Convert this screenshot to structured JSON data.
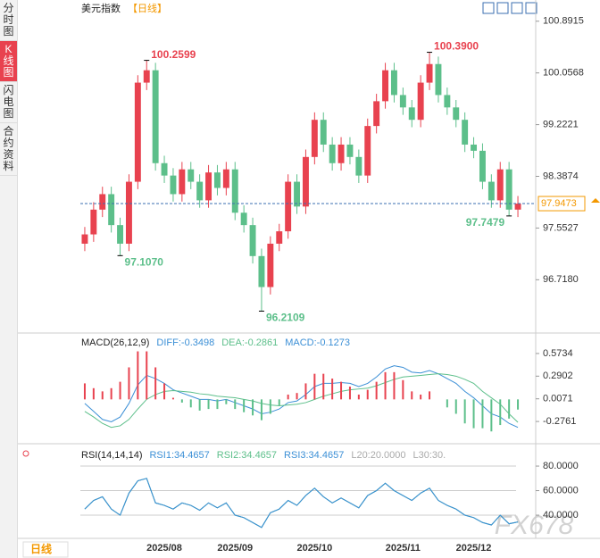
{
  "sidebar": {
    "tabs": [
      "分时图",
      "K线图",
      "闪电图",
      "合约资料"
    ],
    "active": 1
  },
  "footer": {
    "tab": "日线"
  },
  "watermark": "FX678",
  "chart_data": [
    {
      "type": "candlestick",
      "title": "美元指数",
      "period": "【日线】",
      "categories": [
        null,
        null,
        null,
        null,
        null,
        null,
        null,
        null,
        null,
        "2025/08",
        null,
        null,
        null,
        null,
        null,
        null,
        null,
        "2025/09",
        null,
        null,
        null,
        null,
        null,
        null,
        null,
        null,
        "2025/10",
        null,
        null,
        null,
        null,
        null,
        null,
        null,
        null,
        null,
        "2025/11",
        null,
        null,
        null,
        null,
        null,
        null,
        null,
        "2025/12",
        null,
        null,
        null,
        null,
        null
      ],
      "candles": {
        "open": [
          97.3,
          97.45,
          97.85,
          98.1,
          97.6,
          97.3,
          98.3,
          99.9,
          100.1,
          98.6,
          98.4,
          98.1,
          98.5,
          98.3,
          98.0,
          98.45,
          98.2,
          98.5,
          97.8,
          97.6,
          97.1,
          96.6,
          97.3,
          97.5,
          98.3,
          97.9,
          98.7,
          99.3,
          98.9,
          98.6,
          98.9,
          98.7,
          98.4,
          99.2,
          99.6,
          100.1,
          99.7,
          99.5,
          99.3,
          99.9,
          100.2,
          99.7,
          99.5,
          99.3,
          98.9,
          98.8,
          98.3,
          98.0,
          98.5,
          97.85
        ],
        "high": [
          97.57,
          97.97,
          98.22,
          98.22,
          97.72,
          98.42,
          100.02,
          100.2599,
          100.22,
          98.72,
          98.52,
          98.62,
          98.62,
          98.42,
          98.57,
          98.57,
          98.62,
          98.62,
          97.92,
          97.72,
          97.22,
          97.42,
          97.62,
          98.42,
          98.42,
          98.82,
          99.42,
          99.42,
          99.02,
          99.02,
          99.02,
          98.82,
          99.32,
          99.72,
          100.22,
          100.22,
          99.82,
          99.62,
          100.02,
          100.39,
          100.32,
          99.82,
          99.62,
          99.42,
          99.02,
          98.92,
          98.42,
          98.62,
          98.62,
          98.07
        ],
        "low": [
          97.18,
          97.33,
          97.73,
          97.48,
          97.107,
          97.18,
          98.18,
          99.78,
          98.48,
          98.28,
          97.98,
          97.98,
          98.18,
          97.88,
          97.88,
          98.08,
          98.08,
          97.68,
          97.48,
          96.98,
          96.2109,
          96.48,
          97.18,
          97.38,
          97.78,
          97.78,
          98.58,
          98.78,
          98.48,
          98.48,
          98.58,
          98.28,
          98.28,
          99.08,
          99.48,
          99.58,
          99.38,
          99.18,
          99.18,
          99.78,
          99.58,
          99.38,
          99.18,
          98.78,
          98.68,
          98.18,
          97.88,
          97.88,
          97.7479,
          97.73
        ],
        "close": [
          97.45,
          97.85,
          98.1,
          97.6,
          97.3,
          98.3,
          99.9,
          100.1,
          98.6,
          98.4,
          98.1,
          98.5,
          98.3,
          98.0,
          98.45,
          98.2,
          98.5,
          97.8,
          97.6,
          97.1,
          96.6,
          97.3,
          97.5,
          98.3,
          97.9,
          98.7,
          99.3,
          98.9,
          98.6,
          98.9,
          98.7,
          98.4,
          99.2,
          99.6,
          100.1,
          99.7,
          99.5,
          99.3,
          99.9,
          100.2,
          99.7,
          99.5,
          99.3,
          98.9,
          98.8,
          98.3,
          98.0,
          98.5,
          97.85,
          97.9473
        ]
      },
      "high_labels": [
        null,
        null,
        null,
        null,
        null,
        null,
        null,
        "100.2599",
        null,
        null,
        null,
        null,
        null,
        null,
        null,
        null,
        null,
        null,
        null,
        null,
        null,
        null,
        null,
        null,
        null,
        null,
        null,
        null,
        null,
        null,
        null,
        null,
        null,
        null,
        null,
        null,
        null,
        null,
        null,
        "100.3900",
        null,
        null,
        null,
        null,
        null,
        null,
        null,
        null,
        null,
        null
      ],
      "low_labels": [
        null,
        null,
        null,
        null,
        "97.1070",
        null,
        null,
        null,
        null,
        null,
        null,
        null,
        null,
        null,
        null,
        null,
        null,
        null,
        null,
        null,
        "96.2109",
        null,
        null,
        null,
        null,
        null,
        null,
        null,
        null,
        null,
        null,
        null,
        null,
        null,
        null,
        null,
        null,
        null,
        null,
        null,
        null,
        null,
        null,
        null,
        null,
        null,
        null,
        null,
        "97.7479",
        null
      ],
      "last_price": 97.9473,
      "up_color": "#e8424f",
      "down_color": "#5cbf8a",
      "last_color": "#f39800",
      "ylim": [
        95.93,
        101.09
      ],
      "yticks": [
        100.8915,
        100.0568,
        99.2221,
        98.3874,
        97.5527,
        {
          "value": 96.718,
          "label": "96.7180"
        }
      ]
    },
    {
      "type": "macd",
      "title": "MACD(26,12,9)",
      "series": [
        {
          "name": "DIFF:-0.3498",
          "color": "#3b8fd6",
          "values": [
            -0.05,
            -0.15,
            -0.25,
            -0.28,
            -0.22,
            -0.05,
            0.18,
            0.3,
            0.26,
            0.2,
            0.12,
            0.08,
            0.04,
            0.0,
            0.0,
            -0.02,
            0.0,
            -0.04,
            -0.08,
            -0.12,
            -0.18,
            -0.16,
            -0.12,
            -0.04,
            -0.02,
            0.06,
            0.16,
            0.2,
            0.2,
            0.21,
            0.2,
            0.16,
            0.2,
            0.28,
            0.38,
            0.42,
            0.4,
            0.34,
            0.33,
            0.36,
            0.32,
            0.26,
            0.2,
            0.1,
            0.02,
            -0.08,
            -0.18,
            -0.22,
            -0.3,
            -0.3498
          ]
        },
        {
          "name": "DEA:-0.2861",
          "color": "#5cbf8a",
          "values": [
            -0.15,
            -0.22,
            -0.3,
            -0.35,
            -0.33,
            -0.25,
            -0.12,
            0.0,
            0.06,
            0.1,
            0.11,
            0.1,
            0.09,
            0.07,
            0.06,
            0.04,
            0.03,
            0.02,
            0.0,
            -0.02,
            -0.05,
            -0.07,
            -0.08,
            -0.07,
            -0.06,
            -0.04,
            0.0,
            0.04,
            0.07,
            0.1,
            0.12,
            0.13,
            0.14,
            0.17,
            0.21,
            0.25,
            0.28,
            0.29,
            0.3,
            0.31,
            0.32,
            0.31,
            0.29,
            0.25,
            0.2,
            0.1,
            0.02,
            -0.06,
            -0.18,
            -0.2861
          ]
        },
        {
          "name": "MACD:-0.1273",
          "color": "#3b8fd6",
          "histogram": true,
          "values": [
            0.2,
            0.14,
            0.1,
            0.14,
            0.22,
            0.4,
            0.6,
            0.6,
            0.4,
            0.2,
            0.02,
            -0.04,
            -0.1,
            -0.14,
            -0.12,
            -0.12,
            -0.06,
            -0.12,
            -0.16,
            -0.2,
            -0.26,
            -0.18,
            -0.08,
            0.06,
            0.08,
            0.2,
            0.32,
            0.32,
            0.26,
            0.22,
            0.16,
            0.06,
            0.12,
            0.22,
            0.34,
            0.34,
            0.24,
            0.1,
            0.06,
            0.1,
            0.0,
            -0.1,
            -0.18,
            -0.3,
            -0.36,
            -0.36,
            -0.4,
            -0.32,
            -0.24,
            -0.1273
          ]
        }
      ],
      "up_color": "#e8424f",
      "down_color": "#5cbf8a",
      "ylim": [
        -0.498,
        0.751
      ],
      "yticks": [
        0.5734,
        0.2902,
        0.0071,
        -0.2761
      ]
    },
    {
      "type": "line",
      "title": "RSI(14,14,14)",
      "series": [
        {
          "name": "RSI1:34.4657",
          "color": "#3b8fd6",
          "values": [
            45,
            52,
            55,
            45,
            40,
            58,
            68,
            70,
            50,
            48,
            45,
            50,
            48,
            44,
            50,
            46,
            50,
            40,
            38,
            34,
            30,
            42,
            45,
            52,
            48,
            56,
            62,
            55,
            50,
            54,
            50,
            46,
            56,
            60,
            66,
            60,
            56,
            52,
            58,
            62,
            52,
            48,
            45,
            40,
            38,
            34,
            32,
            40,
            33,
            34.4657
          ]
        },
        {
          "name": "RSI2:34.4657",
          "color": "#5cbf8a",
          "values": [
            45,
            52,
            55,
            45,
            40,
            58,
            68,
            70,
            50,
            48,
            45,
            50,
            48,
            44,
            50,
            46,
            50,
            40,
            38,
            34,
            30,
            42,
            45,
            52,
            48,
            56,
            62,
            55,
            50,
            54,
            50,
            46,
            56,
            60,
            66,
            60,
            56,
            52,
            58,
            62,
            52,
            48,
            45,
            40,
            38,
            34,
            32,
            40,
            33,
            34.4657
          ]
        },
        {
          "name": "RSI3:34.4657",
          "color": "#3b8fd6",
          "values": [
            45,
            52,
            55,
            45,
            40,
            58,
            68,
            70,
            50,
            48,
            45,
            50,
            48,
            44,
            50,
            46,
            50,
            40,
            38,
            34,
            30,
            42,
            45,
            52,
            48,
            56,
            62,
            55,
            50,
            54,
            50,
            46,
            56,
            60,
            66,
            60,
            56,
            52,
            58,
            62,
            52,
            48,
            45,
            40,
            38,
            34,
            32,
            40,
            33,
            34.4657
          ]
        }
      ],
      "legend_extra": [
        "L20:20.0000",
        "L30:30."
      ],
      "ylim": [
        23.3,
        92.4
      ],
      "yticks": [
        {
          "value": 80,
          "label": "80.0000"
        },
        {
          "value": 60,
          "label": "60.0000"
        },
        {
          "value": 40,
          "label": "40.0000"
        }
      ]
    }
  ]
}
